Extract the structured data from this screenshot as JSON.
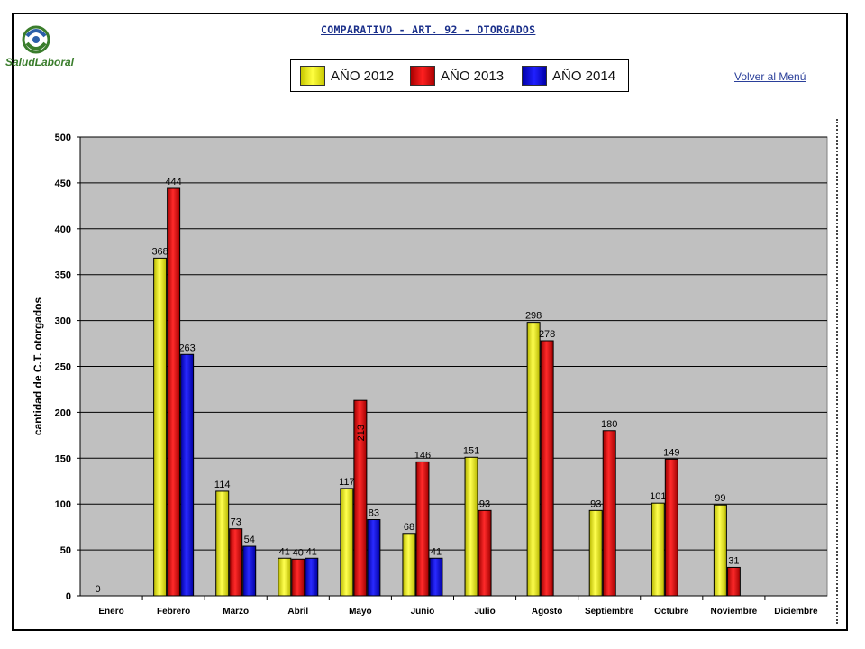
{
  "header": {
    "title": "COMPARATIVO - ART. 92 - OTORGADOS",
    "logo_text": "SaludLaboral",
    "back_link": "Volver al Menú"
  },
  "colors": {
    "plot_bg": "#c0c0c0",
    "series": [
      "#ffff00",
      "#ee0000",
      "#0000ee"
    ]
  },
  "chart_data": {
    "type": "bar",
    "title": "",
    "xlabel": "",
    "ylabel": "cantidad de C.T. otorgados",
    "ylim": [
      0,
      500
    ],
    "yticks": [
      0,
      50,
      100,
      150,
      200,
      250,
      300,
      350,
      400,
      450,
      500
    ],
    "grid": true,
    "legend_position": "top",
    "categories": [
      "Enero",
      "Febrero",
      "Marzo",
      "Abril",
      "Mayo",
      "Junio",
      "Julio",
      "Agosto",
      "Septiembre",
      "Octubre",
      "Noviembre",
      "Diciembre"
    ],
    "series": [
      {
        "name": "AÑO 2012",
        "values": [
          0,
          368,
          114,
          41,
          117,
          68,
          151,
          298,
          93,
          101,
          99,
          null
        ]
      },
      {
        "name": "AÑO 2013",
        "values": [
          null,
          444,
          73,
          40,
          213,
          146,
          93,
          278,
          180,
          149,
          31,
          null
        ]
      },
      {
        "name": "AÑO 2014",
        "values": [
          null,
          263,
          54,
          41,
          83,
          41,
          null,
          null,
          null,
          null,
          null,
          null
        ]
      }
    ]
  }
}
